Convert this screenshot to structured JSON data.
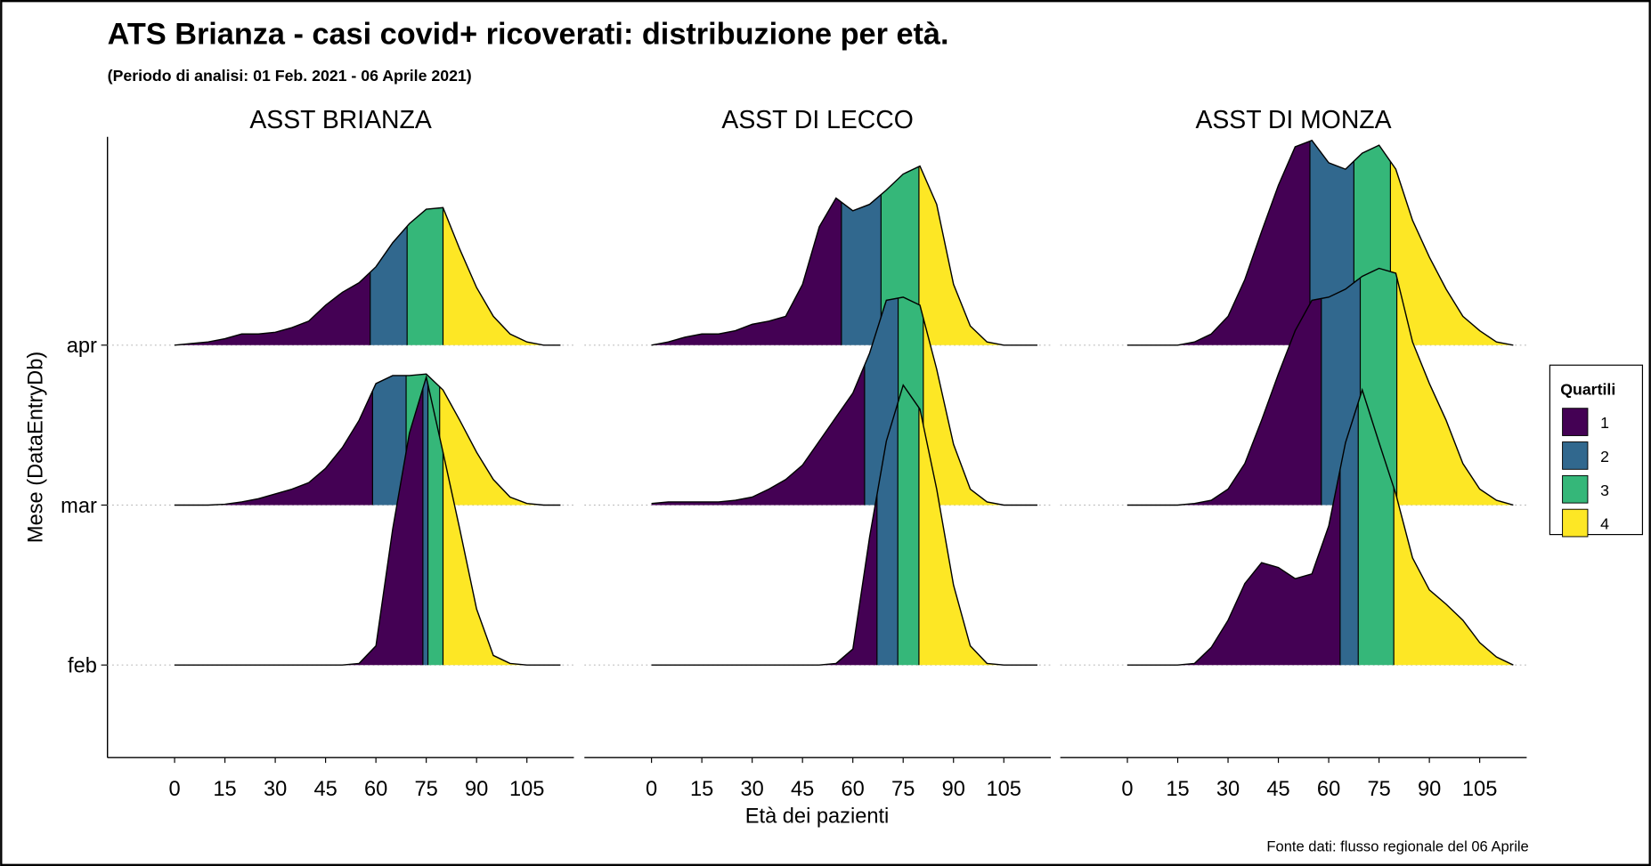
{
  "chart_data": {
    "type": "ridgeline",
    "title": "ATS Brianza - casi covid+ ricoverati: distribuzione per età.",
    "subtitle": "(Periodo di analisi: 01 Feb. 2021 - 06 Aprile 2021)",
    "x_label": "Età dei pazienti",
    "y_label": "Mese (DataEntryDb)",
    "source": "Fonte dati: flusso regionale del 06 Aprile",
    "categories": [
      "feb",
      "mar",
      "apr"
    ],
    "x": [
      0,
      5,
      10,
      15,
      20,
      25,
      30,
      35,
      40,
      45,
      50,
      55,
      60,
      65,
      70,
      75,
      80,
      85,
      90,
      95,
      100,
      105,
      110,
      115
    ],
    "xlim": [
      -20,
      119
    ],
    "xticks": [
      0,
      15,
      30,
      45,
      60,
      75,
      90,
      105
    ],
    "legend": {
      "title": "Quartili",
      "labels": [
        "1",
        "2",
        "3",
        "4"
      ],
      "colors": [
        "#440154",
        "#31688e",
        "#35b779",
        "#fde725"
      ]
    },
    "panels": [
      {
        "title": "ASST BRIANZA",
        "ridges": [
          {
            "values": [
              0,
              0,
              0,
              0,
              0,
              0,
              0,
              0,
              0,
              0,
              0,
              0.01,
              0.12,
              0.85,
              1.45,
              1.8,
              1.33,
              0.85,
              0.35,
              0.06,
              0.01,
              0,
              0,
              0
            ],
            "quartiles": [
              74,
              75.5,
              80
            ]
          },
          {
            "values": [
              0,
              0,
              0,
              0.005,
              0.02,
              0.04,
              0.07,
              0.1,
              0.14,
              0.23,
              0.36,
              0.53,
              0.76,
              0.81,
              0.81,
              0.82,
              0.72,
              0.53,
              0.33,
              0.16,
              0.05,
              0.01,
              0,
              0
            ],
            "quartiles": [
              59,
              69,
              79
            ]
          },
          {
            "values": [
              0,
              0.01,
              0.02,
              0.04,
              0.07,
              0.07,
              0.08,
              0.11,
              0.15,
              0.25,
              0.33,
              0.39,
              0.49,
              0.64,
              0.76,
              0.85,
              0.86,
              0.6,
              0.36,
              0.18,
              0.07,
              0.02,
              0,
              0
            ],
            "quartiles": [
              58.3,
              69.3,
              80
            ]
          }
        ]
      },
      {
        "title": "ASST DI LECCO",
        "ridges": [
          {
            "values": [
              0,
              0,
              0,
              0,
              0,
              0,
              0,
              0,
              0,
              0,
              0,
              0.01,
              0.1,
              0.8,
              1.4,
              1.75,
              1.6,
              1.1,
              0.5,
              0.12,
              0.01,
              0,
              0,
              0
            ],
            "quartiles": [
              67.2,
              73.4,
              79.7
            ]
          },
          {
            "values": [
              0.01,
              0.02,
              0.02,
              0.02,
              0.02,
              0.03,
              0.05,
              0.1,
              0.16,
              0.25,
              0.4,
              0.55,
              0.7,
              0.95,
              1.28,
              1.3,
              1.25,
              0.85,
              0.38,
              0.1,
              0.02,
              0,
              0,
              0
            ],
            "quartiles": [
              63.5,
              73.5,
              81
            ]
          },
          {
            "values": [
              0,
              0.02,
              0.05,
              0.07,
              0.07,
              0.09,
              0.13,
              0.15,
              0.18,
              0.38,
              0.74,
              0.92,
              0.84,
              0.88,
              0.97,
              1.07,
              1.12,
              0.88,
              0.38,
              0.12,
              0.02,
              0,
              0,
              0
            ],
            "quartiles": [
              56.6,
              68.4,
              79.7
            ]
          }
        ]
      },
      {
        "title": "ASST DI MONZA",
        "ridges": [
          {
            "values": [
              0,
              0,
              0,
              0,
              0.01,
              0.11,
              0.28,
              0.51,
              0.64,
              0.61,
              0.54,
              0.57,
              0.87,
              1.39,
              1.72,
              1.39,
              1.07,
              0.67,
              0.47,
              0.38,
              0.28,
              0.14,
              0.05,
              0
            ],
            "quartiles": [
              63.4,
              68.8,
              79.4
            ]
          },
          {
            "values": [
              0,
              0,
              0,
              0,
              0.01,
              0.03,
              0.1,
              0.26,
              0.53,
              0.82,
              1.09,
              1.28,
              1.3,
              1.35,
              1.43,
              1.48,
              1.45,
              1.02,
              0.76,
              0.53,
              0.26,
              0.1,
              0.03,
              0
            ],
            "quartiles": [
              57.8,
              69.4,
              80.3
            ]
          },
          {
            "values": [
              0,
              0,
              0,
              0,
              0.02,
              0.07,
              0.18,
              0.41,
              0.71,
              1.0,
              1.24,
              1.28,
              1.14,
              1.1,
              1.2,
              1.25,
              1.1,
              0.78,
              0.55,
              0.35,
              0.18,
              0.09,
              0.02,
              0
            ],
            "quartiles": [
              54.4,
              67.5,
              78.4
            ]
          }
        ]
      }
    ]
  }
}
